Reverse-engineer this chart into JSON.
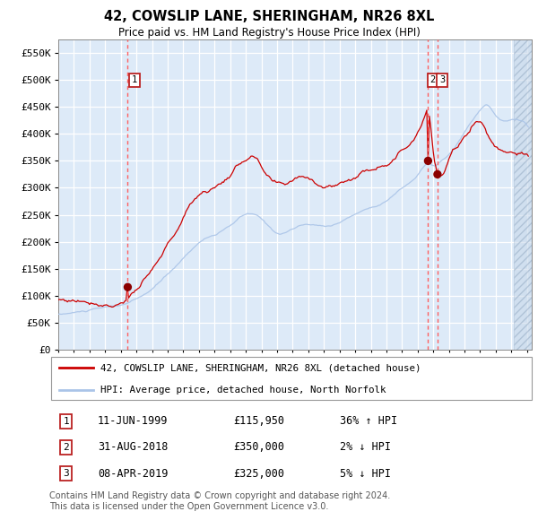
{
  "title1": "42, COWSLIP LANE, SHERINGHAM, NR26 8XL",
  "title2": "Price paid vs. HM Land Registry's House Price Index (HPI)",
  "legend1": "42, COWSLIP LANE, SHERINGHAM, NR26 8XL (detached house)",
  "legend2": "HPI: Average price, detached house, North Norfolk",
  "transaction1_date": "11-JUN-1999",
  "transaction1_price": 115950,
  "transaction1_note": "36% ↑ HPI",
  "transaction2_date": "31-AUG-2018",
  "transaction2_price": 350000,
  "transaction2_note": "2% ↓ HPI",
  "transaction3_date": "08-APR-2019",
  "transaction3_price": 325000,
  "transaction3_note": "5% ↓ HPI",
  "footer": "Contains HM Land Registry data © Crown copyright and database right 2024.\nThis data is licensed under the Open Government Licence v3.0.",
  "hpi_color": "#aac4e8",
  "price_color": "#cc0000",
  "dot_color": "#8b0000",
  "vline_color": "#ff6060",
  "plot_bg": "#ddeaf8",
  "grid_color": "#ffffff",
  "ylim": [
    0,
    575000
  ],
  "yticks": [
    0,
    50000,
    100000,
    150000,
    200000,
    250000,
    300000,
    350000,
    400000,
    450000,
    500000,
    550000
  ],
  "hpi_base_anchors_t": [
    1995.0,
    1996.0,
    1997.0,
    1998.0,
    1999.0,
    2000.0,
    2001.0,
    2002.0,
    2003.0,
    2004.0,
    2005.0,
    2006.0,
    2007.0,
    2008.0,
    2009.0,
    2010.0,
    2011.0,
    2012.0,
    2013.0,
    2014.0,
    2015.0,
    2016.0,
    2017.0,
    2018.0,
    2018.7,
    2019.0,
    2019.3,
    2020.0,
    2021.0,
    2022.0,
    2022.5,
    2023.0,
    2024.0,
    2025.0
  ],
  "hpi_base_anchors_v": [
    65000,
    68000,
    72000,
    76000,
    80000,
    90000,
    108000,
    135000,
    165000,
    195000,
    210000,
    225000,
    245000,
    235000,
    210000,
    218000,
    225000,
    222000,
    230000,
    245000,
    258000,
    272000,
    295000,
    320000,
    340000,
    335000,
    340000,
    355000,
    395000,
    435000,
    445000,
    425000,
    415000,
    405000
  ],
  "red_base_anchors_t": [
    1995.0,
    1996.0,
    1997.0,
    1998.0,
    1999.0,
    1999.5,
    2000.0,
    2001.0,
    2002.0,
    2003.0,
    2004.0,
    2005.0,
    2006.0,
    2007.0,
    2007.5,
    2008.0,
    2008.5,
    2009.0,
    2009.5,
    2010.0,
    2011.0,
    2012.0,
    2013.0,
    2014.0,
    2015.0,
    2016.0,
    2017.0,
    2018.0,
    2018.5,
    2018.7,
    2019.0,
    2019.25,
    2020.0,
    2021.0,
    2022.0,
    2022.5,
    2023.0,
    2024.0,
    2025.0
  ],
  "red_base_anchors_v": [
    92000,
    92000,
    94000,
    96000,
    103000,
    116000,
    130000,
    158000,
    200000,
    250000,
    295000,
    310000,
    335000,
    365000,
    370000,
    345000,
    320000,
    305000,
    300000,
    310000,
    318000,
    308000,
    315000,
    330000,
    345000,
    365000,
    390000,
    430000,
    470000,
    475000,
    400000,
    360000,
    380000,
    420000,
    455000,
    430000,
    410000,
    405000,
    395000
  ]
}
